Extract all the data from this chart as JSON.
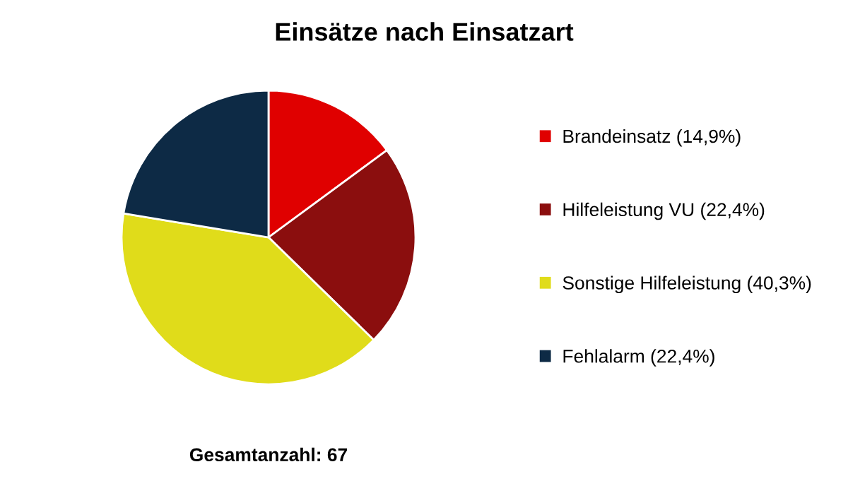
{
  "chart_data": {
    "type": "pie",
    "title": "Einsätze nach Einsatzart",
    "categories": [
      "Brandeinsatz (14,9%)",
      "Hilfeleistung VU (22,4%)",
      "Sonstige Hilfeleistung (40,3%)",
      "Fehlalarm (22,4%)"
    ],
    "values": [
      14.9,
      22.4,
      40.3,
      22.4
    ],
    "colors": [
      "#e00000",
      "#8b0e0e",
      "#e0dc1a",
      "#0d2a45"
    ],
    "annotations": [
      "Gesamtanzahl: 67"
    ],
    "legend": "right"
  }
}
